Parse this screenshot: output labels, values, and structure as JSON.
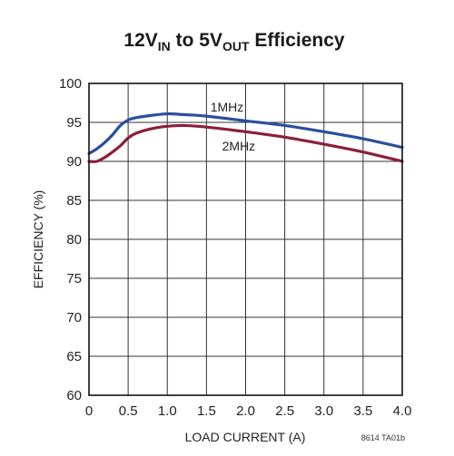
{
  "chart_data": {
    "type": "line",
    "title": {
      "parts": [
        {
          "text": "12V",
          "sub": false
        },
        {
          "text": "IN",
          "sub": true
        },
        {
          "text": " to 5V",
          "sub": false
        },
        {
          "text": "OUT",
          "sub": true
        },
        {
          "text": " Efficiency",
          "sub": false
        }
      ]
    },
    "xlabel": "LOAD CURRENT (A)",
    "ylabel": "EFFICIENCY (%)",
    "xlim": [
      0,
      4.0
    ],
    "ylim": [
      60,
      100
    ],
    "x_ticks": [
      "0",
      "0.5",
      "1.0",
      "1.5",
      "2.0",
      "2.5",
      "3.0",
      "3.5",
      "4.0"
    ],
    "y_ticks": [
      "60",
      "65",
      "70",
      "75",
      "80",
      "85",
      "90",
      "95",
      "100"
    ],
    "grid": true,
    "footnote": "8614 TA01b",
    "series": [
      {
        "name": "1MHz",
        "color": "#2b4f9e",
        "label_at": [
          1.55,
          97.0
        ],
        "x": [
          0,
          0.1,
          0.2,
          0.3,
          0.4,
          0.5,
          0.6,
          0.8,
          1.0,
          1.2,
          1.5,
          2.0,
          2.5,
          3.0,
          3.5,
          4.0
        ],
        "y": [
          91.0,
          91.6,
          92.4,
          93.4,
          94.6,
          95.3,
          95.6,
          95.9,
          96.1,
          96.0,
          95.8,
          95.2,
          94.6,
          93.8,
          92.9,
          91.8
        ]
      },
      {
        "name": "2MHz",
        "color": "#8b1f3a",
        "label_at": [
          1.7,
          92.0
        ],
        "x": [
          0,
          0.1,
          0.2,
          0.3,
          0.4,
          0.5,
          0.6,
          0.8,
          1.0,
          1.2,
          1.5,
          2.0,
          2.5,
          3.0,
          3.5,
          4.0
        ],
        "y": [
          90.0,
          90.0,
          90.5,
          91.2,
          92.0,
          93.0,
          93.6,
          94.2,
          94.5,
          94.6,
          94.4,
          93.8,
          93.1,
          92.2,
          91.2,
          90.0
        ]
      }
    ]
  }
}
